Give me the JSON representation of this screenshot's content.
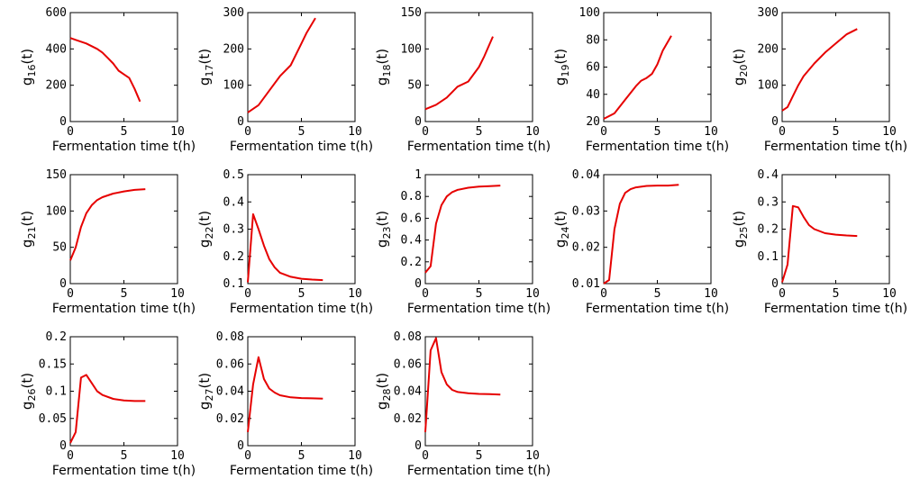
{
  "chart_data": [
    {
      "type": "line",
      "xlabel": "Fermentation time t(h)",
      "ylabel_base": "g",
      "ylabel_sub": "16",
      "ylabel_tail": "(t)",
      "xlim": [
        0,
        10
      ],
      "ylim": [
        0,
        600
      ],
      "xticks": [
        "0",
        "5",
        "10"
      ],
      "yticks": [
        "0",
        "200",
        "400",
        "600"
      ],
      "series": [
        {
          "color": "#e60000",
          "x": [
            0,
            0.5,
            1,
            1.5,
            2,
            2.5,
            3,
            3.5,
            4,
            4.5,
            5,
            5.5,
            6,
            6.5
          ],
          "y": [
            460,
            450,
            440,
            430,
            415,
            400,
            380,
            350,
            320,
            280,
            260,
            240,
            180,
            110
          ]
        }
      ]
    },
    {
      "type": "line",
      "xlabel": "Fermentation time t(h)",
      "ylabel_base": "g",
      "ylabel_sub": "17",
      "ylabel_tail": "(t)",
      "xlim": [
        0,
        10
      ],
      "ylim": [
        0,
        300
      ],
      "xticks": [
        "0",
        "5",
        "10"
      ],
      "yticks": [
        "0",
        "100",
        "200",
        "300"
      ],
      "series": [
        {
          "color": "#e60000",
          "x": [
            0,
            1,
            2,
            3,
            4,
            5,
            5.5,
            6.3
          ],
          "y": [
            25,
            45,
            85,
            125,
            155,
            215,
            245,
            285
          ]
        }
      ]
    },
    {
      "type": "line",
      "xlabel": "Fermentation time t(h)",
      "ylabel_base": "g",
      "ylabel_sub": "18",
      "ylabel_tail": "(t)",
      "xlim": [
        0,
        10
      ],
      "ylim": [
        0,
        150
      ],
      "xticks": [
        "0",
        "5",
        "10"
      ],
      "yticks": [
        "0",
        "50",
        "100",
        "150"
      ],
      "series": [
        {
          "color": "#e60000",
          "x": [
            0,
            1,
            2,
            3,
            4,
            4.5,
            5,
            5.5,
            6.3
          ],
          "y": [
            17,
            23,
            33,
            48,
            55,
            65,
            75,
            90,
            117
          ]
        }
      ]
    },
    {
      "type": "line",
      "xlabel": "Fermentation time t(h)",
      "ylabel_base": "g",
      "ylabel_sub": "19",
      "ylabel_tail": "(t)",
      "xlim": [
        0,
        10
      ],
      "ylim": [
        20,
        100
      ],
      "xticks": [
        "0",
        "5",
        "10"
      ],
      "yticks": [
        "20",
        "40",
        "60",
        "80",
        "100"
      ],
      "series": [
        {
          "color": "#e60000",
          "x": [
            0,
            1,
            2,
            3,
            3.5,
            4,
            4.5,
            5,
            5.5,
            6.3
          ],
          "y": [
            22,
            26,
            36,
            46,
            50,
            52,
            55,
            62,
            72,
            83
          ]
        }
      ]
    },
    {
      "type": "line",
      "xlabel": "Fermentation time t(h)",
      "ylabel_base": "g",
      "ylabel_sub": "20",
      "ylabel_tail": "(t)",
      "xlim": [
        0,
        10
      ],
      "ylim": [
        0,
        300
      ],
      "xticks": [
        "0",
        "5",
        "10"
      ],
      "yticks": [
        "0",
        "100",
        "200",
        "300"
      ],
      "series": [
        {
          "color": "#e60000",
          "x": [
            0,
            0.5,
            1,
            1.5,
            2,
            3,
            4,
            5,
            6,
            7
          ],
          "y": [
            30,
            40,
            70,
            100,
            125,
            160,
            190,
            215,
            240,
            255
          ]
        }
      ]
    },
    {
      "type": "line",
      "xlabel": "Fermentation time t(h)",
      "ylabel_base": "g",
      "ylabel_sub": "21",
      "ylabel_tail": "(t)",
      "xlim": [
        0,
        10
      ],
      "ylim": [
        0,
        150
      ],
      "xticks": [
        "0",
        "5",
        "10"
      ],
      "yticks": [
        "0",
        "50",
        "100",
        "150"
      ],
      "series": [
        {
          "color": "#e60000",
          "x": [
            0,
            0.5,
            1,
            1.5,
            2,
            2.5,
            3,
            4,
            5,
            6,
            7
          ],
          "y": [
            32,
            50,
            78,
            97,
            108,
            115,
            119,
            124,
            127,
            129,
            130
          ]
        }
      ]
    },
    {
      "type": "line",
      "xlabel": "Fermentation time t(h)",
      "ylabel_base": "g",
      "ylabel_sub": "22",
      "ylabel_tail": "(t)",
      "xlim": [
        0,
        10
      ],
      "ylim": [
        0.1,
        0.5
      ],
      "xticks": [
        "0",
        "5",
        "10"
      ],
      "yticks": [
        "0.1",
        "0.2",
        "0.3",
        "0.4",
        "0.5"
      ],
      "series": [
        {
          "color": "#e60000",
          "x": [
            0,
            0.5,
            1,
            1.5,
            2,
            2.5,
            3,
            4,
            5,
            6,
            7
          ],
          "y": [
            0.105,
            0.355,
            0.3,
            0.24,
            0.19,
            0.16,
            0.14,
            0.125,
            0.118,
            0.115,
            0.113
          ]
        }
      ]
    },
    {
      "type": "line",
      "xlabel": "Fermentation time t(h)",
      "ylabel_base": "g",
      "ylabel_sub": "23",
      "ylabel_tail": "(t)",
      "xlim": [
        0,
        10
      ],
      "ylim": [
        0,
        1
      ],
      "xticks": [
        "0",
        "5",
        "10"
      ],
      "yticks": [
        "0",
        "0.2",
        "0.4",
        "0.6",
        "0.8",
        "1"
      ],
      "series": [
        {
          "color": "#e60000",
          "x": [
            0,
            0.5,
            1,
            1.5,
            2,
            2.5,
            3,
            4,
            5,
            6,
            7
          ],
          "y": [
            0.1,
            0.16,
            0.55,
            0.72,
            0.8,
            0.84,
            0.86,
            0.88,
            0.89,
            0.895,
            0.9
          ]
        }
      ]
    },
    {
      "type": "line",
      "xlabel": "Fermentation time t(h)",
      "ylabel_base": "g",
      "ylabel_sub": "24",
      "ylabel_tail": "(t)",
      "xlim": [
        0,
        10
      ],
      "ylim": [
        0.01,
        0.04
      ],
      "xticks": [
        "0",
        "5",
        "10"
      ],
      "yticks": [
        "0.01",
        "0.02",
        "0.03",
        "0.04"
      ],
      "series": [
        {
          "color": "#e60000",
          "x": [
            0,
            0.5,
            1,
            1.5,
            2,
            2.5,
            3,
            4,
            5,
            6,
            7
          ],
          "y": [
            0.01,
            0.011,
            0.025,
            0.032,
            0.035,
            0.036,
            0.0365,
            0.0369,
            0.037,
            0.037,
            0.0372
          ]
        }
      ]
    },
    {
      "type": "line",
      "xlabel": "Fermentation time t(h)",
      "ylabel_base": "g",
      "ylabel_sub": "25",
      "ylabel_tail": "(t)",
      "xlim": [
        0,
        10
      ],
      "ylim": [
        0,
        0.4
      ],
      "xticks": [
        "0",
        "5",
        "10"
      ],
      "yticks": [
        "0",
        "0.1",
        "0.2",
        "0.3",
        "0.4"
      ],
      "series": [
        {
          "color": "#e60000",
          "x": [
            0,
            0.5,
            1,
            1.5,
            2,
            2.5,
            3,
            4,
            5,
            6,
            7
          ],
          "y": [
            0.005,
            0.07,
            0.285,
            0.28,
            0.245,
            0.215,
            0.2,
            0.185,
            0.18,
            0.177,
            0.175
          ]
        }
      ]
    },
    {
      "type": "line",
      "xlabel": "Fermentation time t(h)",
      "ylabel_base": "g",
      "ylabel_sub": "26",
      "ylabel_tail": "(t)",
      "xlim": [
        0,
        10
      ],
      "ylim": [
        0,
        0.2
      ],
      "xticks": [
        "0",
        "5",
        "10"
      ],
      "yticks": [
        "0",
        "0.05",
        "0.1",
        "0.15",
        "0.2"
      ],
      "series": [
        {
          "color": "#e60000",
          "x": [
            0,
            0.5,
            1,
            1.5,
            2,
            2.5,
            3,
            4,
            5,
            6,
            7
          ],
          "y": [
            0.005,
            0.025,
            0.125,
            0.13,
            0.115,
            0.1,
            0.093,
            0.086,
            0.083,
            0.082,
            0.082
          ]
        }
      ]
    },
    {
      "type": "line",
      "xlabel": "Fermentation time t(h)",
      "ylabel_base": "g",
      "ylabel_sub": "27",
      "ylabel_tail": "(t)",
      "xlim": [
        0,
        10
      ],
      "ylim": [
        0,
        0.08
      ],
      "xticks": [
        "0",
        "5",
        "10"
      ],
      "yticks": [
        "0",
        "0.02",
        "0.04",
        "0.06",
        "0.08"
      ],
      "series": [
        {
          "color": "#e60000",
          "x": [
            0,
            0.5,
            1,
            1.5,
            2,
            2.5,
            3,
            4,
            5,
            6,
            7
          ],
          "y": [
            0.01,
            0.045,
            0.065,
            0.049,
            0.042,
            0.039,
            0.037,
            0.0355,
            0.035,
            0.0348,
            0.0345
          ]
        }
      ]
    },
    {
      "type": "line",
      "xlabel": "Fermentation time t(h)",
      "ylabel_base": "g",
      "ylabel_sub": "28",
      "ylabel_tail": "(t)",
      "xlim": [
        0,
        10
      ],
      "ylim": [
        0,
        0.08
      ],
      "xticks": [
        "0",
        "5",
        "10"
      ],
      "yticks": [
        "0",
        "0.02",
        "0.04",
        "0.06",
        "0.08"
      ],
      "series": [
        {
          "color": "#e60000",
          "x": [
            0,
            0.5,
            1,
            1.5,
            2,
            2.5,
            3,
            4,
            5,
            6,
            7
          ],
          "y": [
            0.01,
            0.07,
            0.079,
            0.054,
            0.045,
            0.041,
            0.0395,
            0.0385,
            0.038,
            0.0378,
            0.0375
          ]
        }
      ]
    }
  ]
}
